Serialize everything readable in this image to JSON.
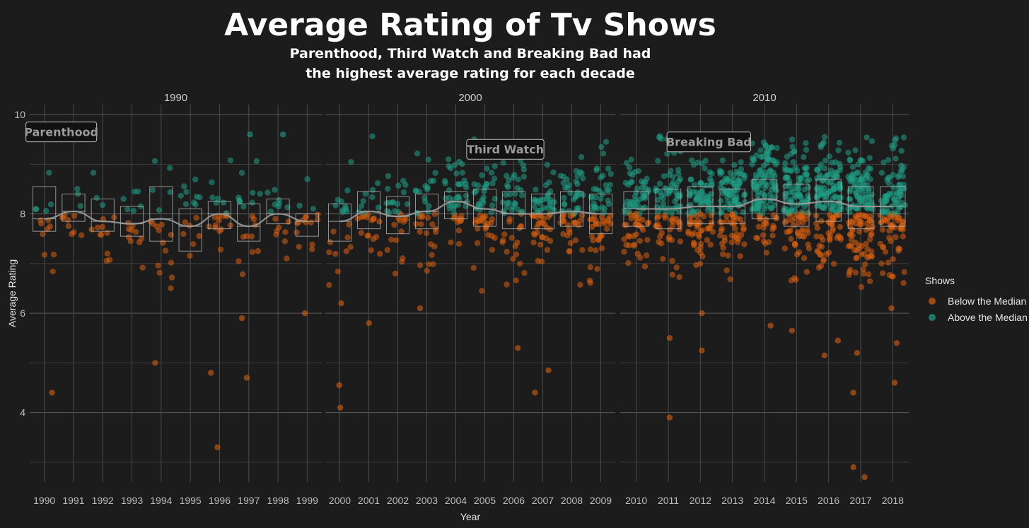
{
  "chart_data": {
    "type": "scatter",
    "title": "Average Rating of Tv Shows",
    "subtitle_lines": [
      "Parenthood, Third Watch and Breaking Bad had",
      "the highest average rating for each decade"
    ],
    "xlabel": "Year",
    "ylabel": "Average Rating",
    "ylim": [
      2.6,
      10.2
    ],
    "yticks": [
      "4",
      "6",
      "8",
      "10"
    ],
    "grid": true,
    "legend": {
      "title": "Shows",
      "position": "right",
      "entries": [
        {
          "name": "Below the Median",
          "color": "#d95f0e"
        },
        {
          "name": "Above the Median",
          "color": "#1fa187"
        }
      ]
    },
    "median_rating": 8.0,
    "panels": [
      {
        "strip": "1990",
        "years": [
          "1990",
          "1991",
          "1992",
          "1993",
          "1994",
          "1995",
          "1996",
          "1997",
          "1998",
          "1999"
        ],
        "boxes": [
          {
            "q1": 7.65,
            "q3": 8.55,
            "median": 7.9
          },
          {
            "q1": 7.85,
            "q3": 8.4,
            "median": 8.05
          },
          {
            "q1": 7.65,
            "q3": 8.3,
            "median": 7.85
          },
          {
            "q1": 7.55,
            "q3": 8.15,
            "median": 7.8
          },
          {
            "q1": 7.45,
            "q3": 8.55,
            "median": 7.9
          },
          {
            "q1": 7.25,
            "q3": 8.1,
            "median": 7.75
          },
          {
            "q1": 7.7,
            "q3": 8.25,
            "median": 8.0
          },
          {
            "q1": 7.45,
            "q3": 8.2,
            "median": 7.75
          },
          {
            "q1": 7.8,
            "q3": 8.3,
            "median": 8.0
          },
          {
            "q1": 7.55,
            "q3": 8.0,
            "median": 7.85
          }
        ],
        "counts": [
          14,
          12,
          14,
          16,
          18,
          16,
          20,
          20,
          16,
          16
        ],
        "outliers": [
          {
            "year": "1990",
            "y": 4.4
          },
          {
            "year": "1994",
            "y": 5.0
          },
          {
            "year": "1996",
            "y": 4.8
          },
          {
            "year": "1996",
            "y": 3.3
          },
          {
            "year": "1997",
            "y": 4.7
          },
          {
            "year": "1997",
            "y": 5.9
          },
          {
            "year": "1999",
            "y": 6.0
          },
          {
            "year": "1990",
            "y": 9.6
          },
          {
            "year": "1997",
            "y": 9.6
          },
          {
            "year": "1998",
            "y": 9.6
          }
        ],
        "annotation": {
          "text": "Parenthood",
          "year": "1990",
          "y": 9.65
        }
      },
      {
        "strip": "2000",
        "years": [
          "2000",
          "2001",
          "2002",
          "2003",
          "2004",
          "2005",
          "2006",
          "2007",
          "2008",
          "2009"
        ],
        "boxes": [
          {
            "q1": 7.45,
            "q3": 8.2,
            "median": 7.85
          },
          {
            "q1": 7.7,
            "q3": 8.45,
            "median": 8.05
          },
          {
            "q1": 7.6,
            "q3": 8.35,
            "median": 7.95
          },
          {
            "q1": 7.7,
            "q3": 8.4,
            "median": 8.05
          },
          {
            "q1": 7.9,
            "q3": 8.45,
            "median": 8.25
          },
          {
            "q1": 7.75,
            "q3": 8.5,
            "median": 8.1
          },
          {
            "q1": 7.7,
            "q3": 8.45,
            "median": 8.0
          },
          {
            "q1": 7.7,
            "q3": 8.4,
            "median": 8.0
          },
          {
            "q1": 7.75,
            "q3": 8.45,
            "median": 8.05
          },
          {
            "q1": 7.6,
            "q3": 8.4,
            "median": 8.0
          }
        ],
        "counts": [
          20,
          26,
          30,
          36,
          44,
          50,
          54,
          58,
          60,
          62
        ],
        "outliers": [
          {
            "year": "2000",
            "y": 4.55
          },
          {
            "year": "2000",
            "y": 4.1
          },
          {
            "year": "2000",
            "y": 6.2
          },
          {
            "year": "2001",
            "y": 5.8
          },
          {
            "year": "2006",
            "y": 5.3
          },
          {
            "year": "2007",
            "y": 4.85
          },
          {
            "year": "2007",
            "y": 4.4
          },
          {
            "year": "2003",
            "y": 6.1
          }
        ],
        "annotation": {
          "text": "Third Watch",
          "year": "2006",
          "y": 9.3
        }
      },
      {
        "strip": "2010",
        "years": [
          "2010",
          "2011",
          "2012",
          "2013",
          "2014",
          "2015",
          "2016",
          "2017",
          "2018"
        ],
        "boxes": [
          {
            "q1": 7.75,
            "q3": 8.45,
            "median": 8.1
          },
          {
            "q1": 7.7,
            "q3": 8.5,
            "median": 8.1
          },
          {
            "q1": 7.8,
            "q3": 8.55,
            "median": 8.15
          },
          {
            "q1": 7.8,
            "q3": 8.5,
            "median": 8.15
          },
          {
            "q1": 7.9,
            "q3": 8.7,
            "median": 8.3
          },
          {
            "q1": 7.75,
            "q3": 8.6,
            "median": 8.2
          },
          {
            "q1": 7.85,
            "q3": 8.7,
            "median": 8.25
          },
          {
            "q1": 7.7,
            "q3": 8.55,
            "median": 8.15
          },
          {
            "q1": 7.75,
            "q3": 8.55,
            "median": 8.15
          }
        ],
        "counts": [
          80,
          90,
          100,
          110,
          120,
          130,
          140,
          150,
          120
        ],
        "outliers": [
          {
            "year": "2011",
            "y": 3.9
          },
          {
            "year": "2011",
            "y": 5.5
          },
          {
            "year": "2012",
            "y": 5.25
          },
          {
            "year": "2012",
            "y": 6.0
          },
          {
            "year": "2014",
            "y": 5.75
          },
          {
            "year": "2015",
            "y": 5.65
          },
          {
            "year": "2016",
            "y": 5.45
          },
          {
            "year": "2016",
            "y": 5.15
          },
          {
            "year": "2017",
            "y": 2.9
          },
          {
            "year": "2017",
            "y": 2.7
          },
          {
            "year": "2017",
            "y": 4.4
          },
          {
            "year": "2017",
            "y": 5.2
          },
          {
            "year": "2018",
            "y": 4.6
          },
          {
            "year": "2018",
            "y": 5.4
          },
          {
            "year": "2018",
            "y": 6.1
          }
        ],
        "annotation": {
          "text": "Breaking Bad",
          "year": "2012",
          "y": 9.45
        }
      }
    ]
  }
}
